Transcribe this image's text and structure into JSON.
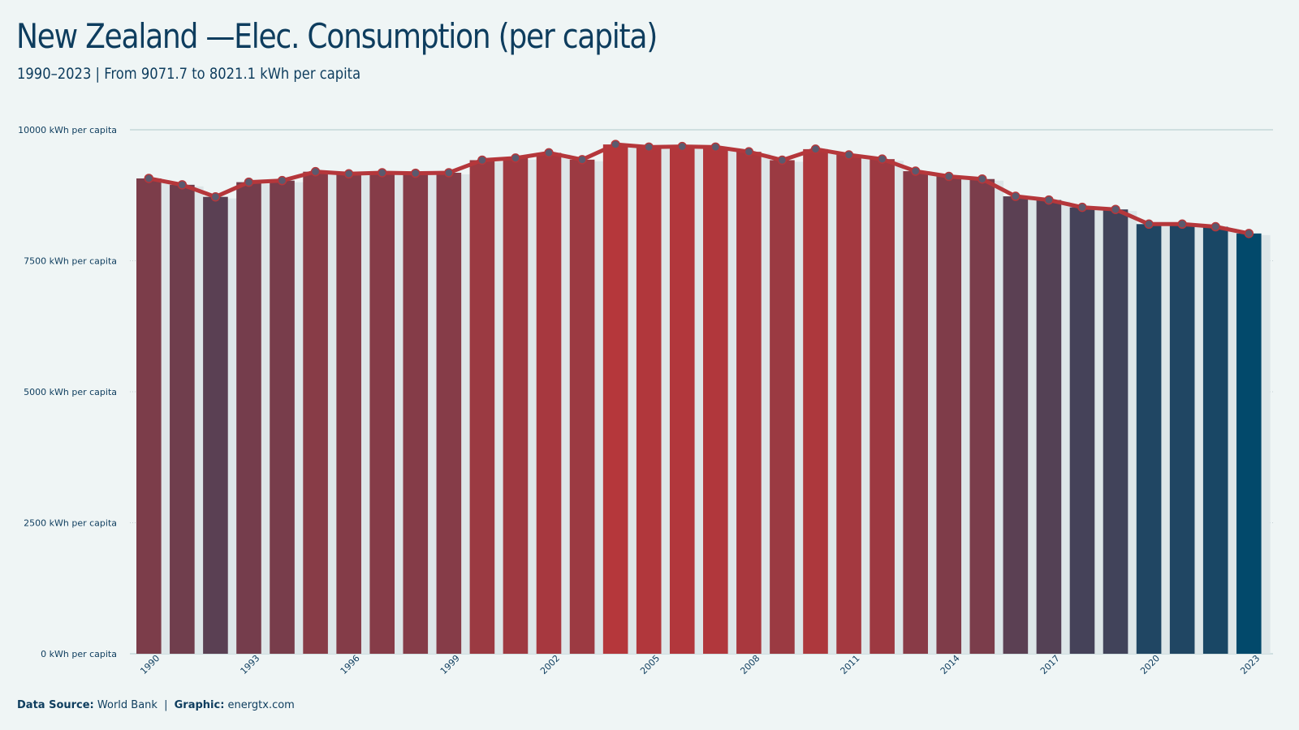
{
  "header": {
    "title": "New Zealand —Elec. Consumption (per capita)",
    "subtitle": "1990–2023 | From 9071.7 to 8021.1 kWh per capita"
  },
  "footer": {
    "source_label": "Data Source:",
    "source_value": "World Bank",
    "separator": "|",
    "graphic_label": "Graphic:",
    "graphic_value": "energtx.com"
  },
  "colors": {
    "background": "#eff5f5",
    "text": "#0e3d5e",
    "line": "#b5373b",
    "high": "#b5373b",
    "low": "#02496b",
    "shadow_bar": "#dde6e8",
    "marker_fill": "#5b5a6e"
  },
  "chart_data": {
    "type": "bar",
    "title": "New Zealand —Elec. Consumption (per capita)",
    "ylabel": "",
    "xlabel": "",
    "unit_suffix": " kWh per capita",
    "ylim": [
      0,
      10000
    ],
    "yticks": [
      0,
      2500,
      5000,
      7500,
      10000
    ],
    "ytick_labels": [
      "0 kWh per capita",
      "2500 kWh per capita",
      "5000 kWh per capita",
      "7500 kWh per capita",
      "10000 kWh per capita"
    ],
    "xtick_labels": [
      "1990",
      "1993",
      "1996",
      "1999",
      "2002",
      "2005",
      "2008",
      "2011",
      "2014",
      "2017",
      "2020",
      "2023"
    ],
    "grid": true,
    "overlay_line": true,
    "categories": [
      "1990",
      "1991",
      "1992",
      "1993",
      "1994",
      "1995",
      "1996",
      "1997",
      "1998",
      "1999",
      "2000",
      "2001",
      "2002",
      "2003",
      "2004",
      "2005",
      "2006",
      "2007",
      "2008",
      "2009",
      "2010",
      "2011",
      "2012",
      "2013",
      "2014",
      "2015",
      "2016",
      "2017",
      "2018",
      "2019",
      "2020",
      "2021",
      "2022",
      "2023"
    ],
    "values": [
      9071.7,
      8950,
      8720,
      9000,
      9030,
      9200,
      9160,
      9180,
      9170,
      9180,
      9420,
      9460,
      9560,
      9430,
      9720,
      9670,
      9680,
      9670,
      9580,
      9420,
      9630,
      9520,
      9440,
      9210,
      9110,
      9060,
      8730,
      8660,
      8520,
      8480,
      8200,
      8200,
      8150,
      8021.1
    ]
  }
}
